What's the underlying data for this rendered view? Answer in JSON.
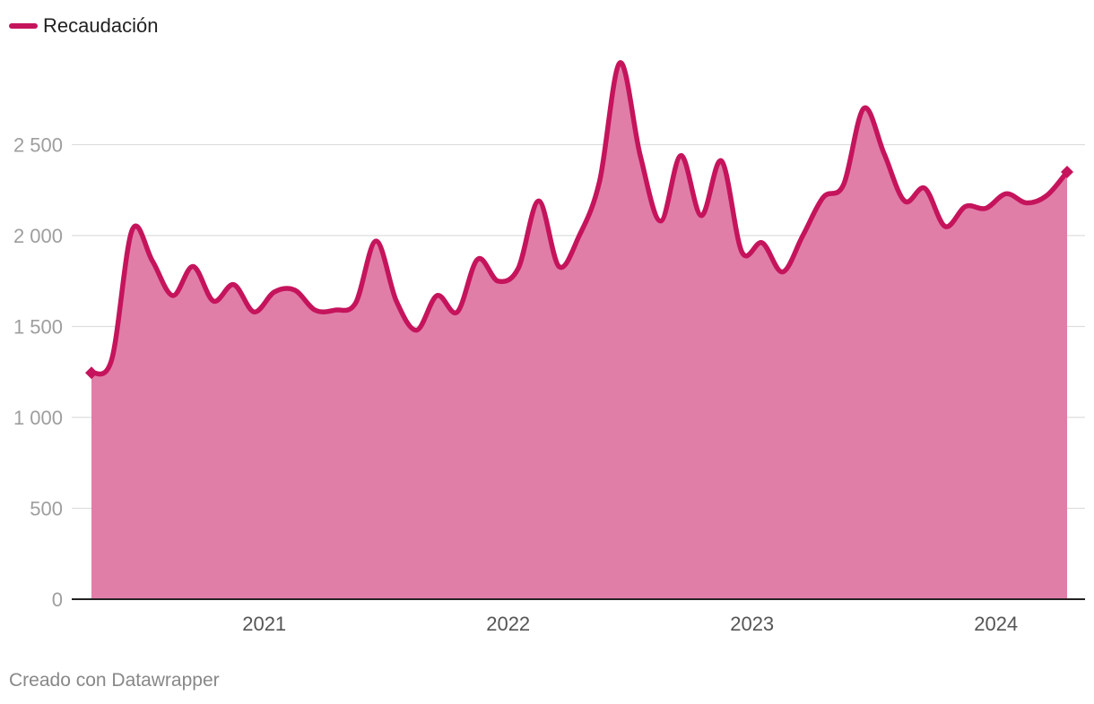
{
  "legend": {
    "label": "Recaudación"
  },
  "footer": {
    "credit": "Creado con Datawrapper"
  },
  "colors": {
    "line": "#c5145c",
    "area": "#e07ea8",
    "grid": "#dedede",
    "axis": "#222222"
  },
  "chart_data": {
    "type": "area",
    "title": "",
    "xlabel": "",
    "ylabel": "",
    "series": [
      {
        "name": "Recaudación",
        "x": [
          "2020-10",
          "2020-11",
          "2020-12",
          "2021-01",
          "2021-02",
          "2021-03",
          "2021-04",
          "2021-05",
          "2021-06",
          "2021-07",
          "2021-08",
          "2021-09",
          "2021-10",
          "2021-11",
          "2021-12",
          "2022-01",
          "2022-02",
          "2022-03",
          "2022-04",
          "2022-05",
          "2022-06",
          "2022-07",
          "2022-08",
          "2022-09",
          "2022-10",
          "2022-11",
          "2022-12",
          "2023-01",
          "2023-02",
          "2023-03",
          "2023-04",
          "2023-05",
          "2023-06",
          "2023-07",
          "2023-08",
          "2023-09",
          "2023-10",
          "2023-11",
          "2023-12",
          "2024-01",
          "2024-02",
          "2024-03",
          "2024-04",
          "2024-05",
          "2024-06",
          "2024-07",
          "2024-08",
          "2024-09",
          "2024-10"
        ],
        "values": [
          1245,
          1320,
          2030,
          1860,
          1670,
          1830,
          1640,
          1730,
          1580,
          1690,
          1700,
          1590,
          1590,
          1630,
          1970,
          1640,
          1480,
          1670,
          1580,
          1870,
          1750,
          1820,
          2190,
          1830,
          2000,
          2300,
          2950,
          2440,
          2080,
          2440,
          2110,
          2410,
          1910,
          1960,
          1800,
          2000,
          2210,
          2280,
          2700,
          2450,
          2190,
          2260,
          2050,
          2160,
          2150,
          2230,
          2180,
          2220,
          2350
        ]
      }
    ],
    "x_ticks": [
      "2021",
      "2022",
      "2023",
      "2024"
    ],
    "y_ticks": [
      "0",
      "500",
      "1 000",
      "1 500",
      "2 000",
      "2 500"
    ],
    "y_tick_values": [
      0,
      500,
      1000,
      1500,
      2000,
      2500
    ],
    "ylim": [
      0,
      3000
    ],
    "grid": true,
    "legend_position": "top-left",
    "end_markers": "diamond"
  }
}
